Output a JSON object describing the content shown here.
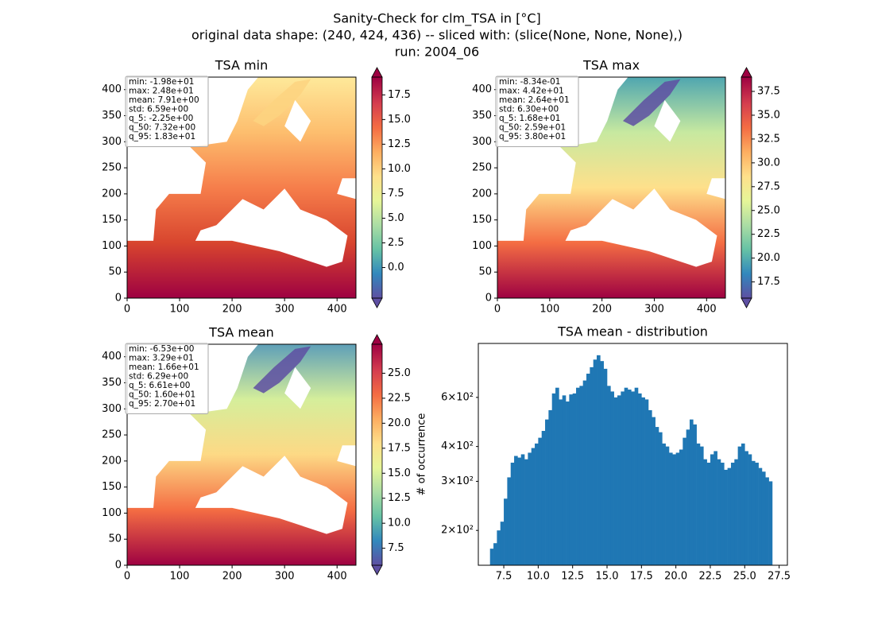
{
  "figure_title": [
    "Sanity-Check for clm_TSA in [°C]",
    "original data shape: (240, 424, 436) -- sliced with: (slice(None, None, None),)",
    "run: 2004_06"
  ],
  "chart_data": [
    {
      "type": "heatmap",
      "title": "TSA min",
      "xlim": [
        0,
        436
      ],
      "ylim": [
        0,
        424
      ],
      "xticks": [
        0,
        100,
        200,
        300,
        400
      ],
      "yticks": [
        0,
        50,
        100,
        150,
        200,
        250,
        300,
        350,
        400
      ],
      "colorbar": {
        "lim": [
          -3.1,
          19.3
        ],
        "ticks": [
          {
            "value": 0,
            "label": "0.0"
          },
          2.5,
          {
            "value": 5,
            "label": "5.0"
          },
          7.5,
          {
            "value": 10,
            "label": "10.0"
          },
          12.5,
          {
            "value": 15,
            "label": "15.0"
          },
          17.5
        ]
      },
      "stats": [
        "min: -1.98e+01",
        "max: 2.48e+01",
        "mean: 7.91e+00",
        "std: 6.59e+00",
        "q_5: -2.25e+00",
        "q_50: 7.32e+00",
        "q_95: 1.83e+01"
      ]
    },
    {
      "type": "heatmap",
      "title": "TSA max",
      "xlim": [
        0,
        436
      ],
      "ylim": [
        0,
        424
      ],
      "xticks": [
        0,
        100,
        200,
        300,
        400
      ],
      "yticks": [
        0,
        50,
        100,
        150,
        200,
        250,
        300,
        350,
        400
      ],
      "colorbar": {
        "lim": [
          15.8,
          39.0
        ],
        "ticks": [
          17.5,
          {
            "value": 20,
            "label": "20.0"
          },
          22.5,
          {
            "value": 25,
            "label": "25.0"
          },
          27.5,
          {
            "value": 30,
            "label": "30.0"
          },
          32.5,
          {
            "value": 35,
            "label": "35.0"
          },
          37.5
        ]
      },
      "stats": [
        "min: -8.34e-01",
        "max: 4.42e+01",
        "mean: 2.64e+01",
        "std: 6.30e+00",
        "q_5: 1.68e+01",
        "q_50: 2.59e+01",
        "q_95: 3.80e+01"
      ]
    },
    {
      "type": "heatmap",
      "title": "TSA mean",
      "xlim": [
        0,
        436
      ],
      "ylim": [
        0,
        424
      ],
      "xticks": [
        0,
        100,
        200,
        300,
        400
      ],
      "yticks": [
        0,
        50,
        100,
        150,
        200,
        250,
        300,
        350,
        400
      ],
      "colorbar": {
        "lim": [
          5.8,
          27.9
        ],
        "ticks": [
          7.5,
          {
            "value": 10,
            "label": "10.0"
          },
          12.5,
          {
            "value": 15,
            "label": "15.0"
          },
          17.5,
          {
            "value": 20,
            "label": "20.0"
          },
          22.5,
          {
            "value": 25,
            "label": "25.0"
          }
        ]
      },
      "stats": [
        "min: -6.53e+00",
        "max: 3.29e+01",
        "mean: 1.66e+01",
        "std: 6.29e+00",
        "q_5: 6.61e+00",
        "q_50: 1.60e+01",
        "q_95: 2.70e+01"
      ]
    },
    {
      "type": "histogram",
      "title": "TSA mean - distribution",
      "ylabel": "# of occurrence",
      "color": "#1f77b4",
      "log_y": true,
      "xlim": [
        5.65,
        28.1
      ],
      "ylim": [
        150,
        937
      ],
      "xticks": [
        7.5,
        {
          "value": 10,
          "label": "10.0"
        },
        12.5,
        {
          "value": 15,
          "label": "15.0"
        },
        17.5,
        {
          "value": 20,
          "label": "20.0"
        },
        22.5,
        {
          "value": 25,
          "label": "25.0"
        },
        27.5
      ],
      "yticks": [
        {
          "value": 200,
          "label": "2×10²"
        },
        {
          "value": 300,
          "label": "3×10²"
        },
        {
          "value": 400,
          "label": "4×10²"
        },
        {
          "value": 600,
          "label": "6×10²"
        }
      ],
      "bins": [
        6.5,
        6.75,
        7.0,
        7.25,
        7.5,
        7.75,
        8.0,
        8.25,
        8.5,
        8.75,
        9.0,
        9.25,
        9.5,
        9.75,
        10.0,
        10.25,
        10.5,
        10.75,
        11.0,
        11.25,
        11.5,
        11.75,
        12.0,
        12.25,
        12.5,
        12.75,
        13.0,
        13.25,
        13.5,
        13.75,
        14.0,
        14.25,
        14.5,
        14.75,
        15.0,
        15.25,
        15.5,
        15.75,
        16.0,
        16.25,
        16.5,
        16.75,
        17.0,
        17.25,
        17.5,
        17.75,
        18.0,
        18.25,
        18.5,
        18.75,
        19.0,
        19.25,
        19.5,
        19.75,
        20.0,
        20.25,
        20.5,
        20.75,
        21.0,
        21.25,
        21.5,
        21.75,
        22.0,
        22.25,
        22.5,
        22.75,
        23.0,
        23.25,
        23.5,
        23.75,
        24.0,
        24.25,
        24.5,
        24.75,
        25.0,
        25.25,
        25.5,
        25.75,
        26.0,
        26.25,
        26.5,
        26.75,
        27.0
      ],
      "values": [
        172,
        180,
        200,
        215,
        260,
        310,
        350,
        370,
        365,
        375,
        360,
        380,
        395,
        410,
        430,
        455,
        500,
        540,
        620,
        650,
        590,
        610,
        580,
        615,
        620,
        650,
        660,
        690,
        730,
        770,
        820,
        850,
        810,
        760,
        660,
        630,
        600,
        610,
        630,
        650,
        640,
        630,
        650,
        620,
        600,
        590,
        540,
        510,
        470,
        450,
        410,
        400,
        380,
        375,
        380,
        390,
        430,
        460,
        500,
        480,
        410,
        400,
        360,
        350,
        375,
        385,
        360,
        350,
        330,
        335,
        350,
        360,
        400,
        410,
        385,
        375,
        355,
        350,
        335,
        325,
        310,
        300
      ]
    }
  ]
}
